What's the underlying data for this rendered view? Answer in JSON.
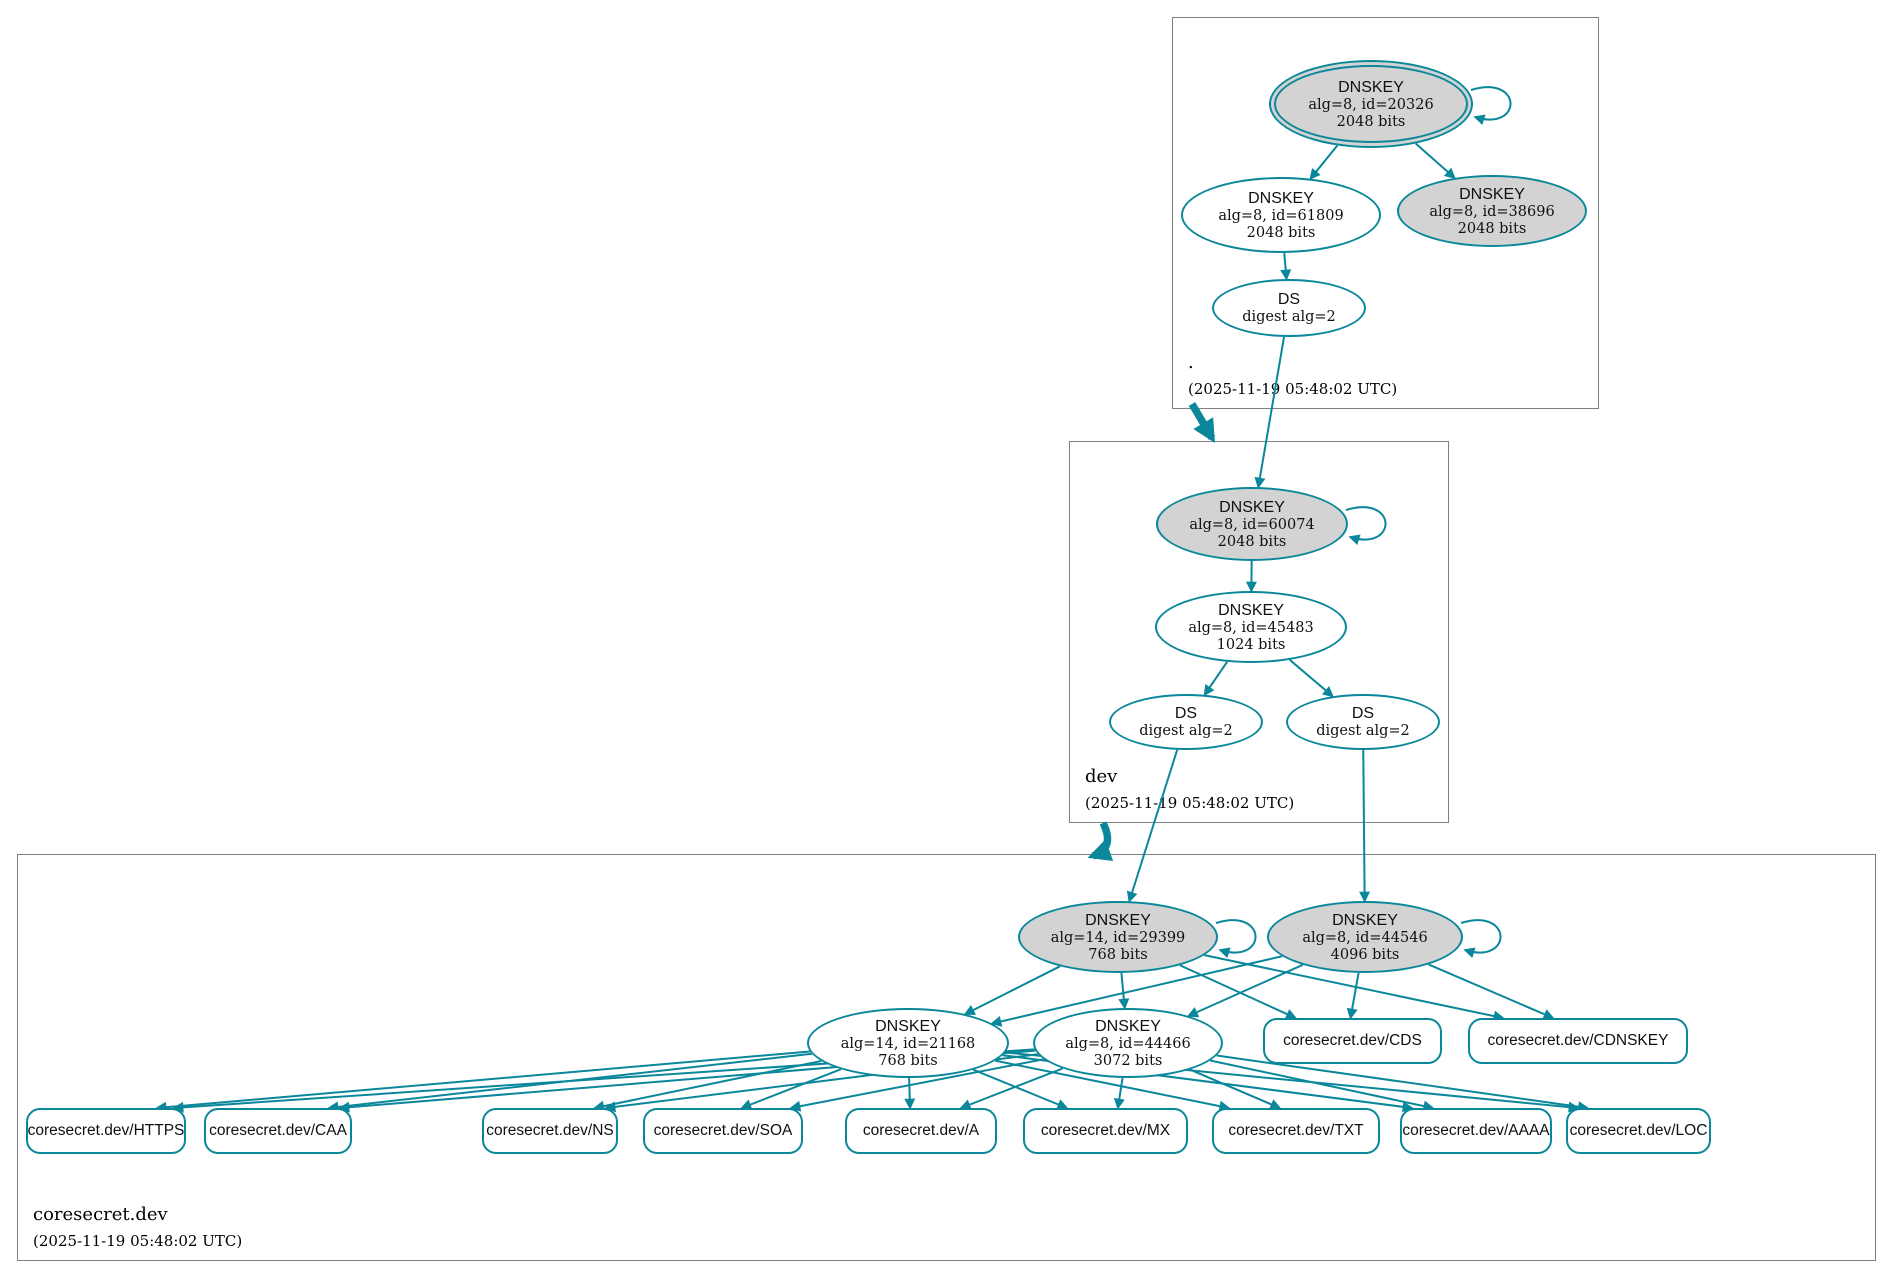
{
  "colors": {
    "secure_edge": "#0a879a",
    "ksk_fill": "#d3d3d3",
    "zone_border": "#808080"
  },
  "zones": {
    "root": {
      "label": ".",
      "timestamp": "(2025-11-19 05:48:02 UTC)",
      "nodes": {
        "ksk": {
          "title": "DNSKEY",
          "detail": "alg=8, id=20326",
          "bits": "2048 bits"
        },
        "zsk": {
          "title": "DNSKEY",
          "detail": "alg=8, id=61809",
          "bits": "2048 bits"
        },
        "ksk2": {
          "title": "DNSKEY",
          "detail": "alg=8, id=38696",
          "bits": "2048 bits"
        },
        "ds": {
          "title": "DS",
          "detail": "digest alg=2"
        }
      }
    },
    "dev": {
      "label": "dev",
      "timestamp": "(2025-11-19 05:48:02 UTC)",
      "nodes": {
        "ksk": {
          "title": "DNSKEY",
          "detail": "alg=8, id=60074",
          "bits": "2048 bits"
        },
        "zsk": {
          "title": "DNSKEY",
          "detail": "alg=8, id=45483",
          "bits": "1024 bits"
        },
        "ds1": {
          "title": "DS",
          "detail": "digest alg=2"
        },
        "ds2": {
          "title": "DS",
          "detail": "digest alg=2"
        }
      }
    },
    "coresecret": {
      "label": "coresecret.dev",
      "timestamp": "(2025-11-19 05:48:02 UTC)",
      "nodes": {
        "ksk1": {
          "title": "DNSKEY",
          "detail": "alg=14, id=29399",
          "bits": "768 bits"
        },
        "ksk2": {
          "title": "DNSKEY",
          "detail": "alg=8, id=44546",
          "bits": "4096 bits"
        },
        "zsk1": {
          "title": "DNSKEY",
          "detail": "alg=14, id=21168",
          "bits": "768 bits"
        },
        "zsk2": {
          "title": "DNSKEY",
          "detail": "alg=8, id=44466",
          "bits": "3072 bits"
        },
        "cds": {
          "label": "coresecret.dev/CDS"
        },
        "cdnskey": {
          "label": "coresecret.dev/CDNSKEY"
        }
      },
      "rrsets": [
        {
          "label": "coresecret.dev/HTTPS"
        },
        {
          "label": "coresecret.dev/CAA"
        },
        {
          "label": "coresecret.dev/NS"
        },
        {
          "label": "coresecret.dev/SOA"
        },
        {
          "label": "coresecret.dev/A"
        },
        {
          "label": "coresecret.dev/MX"
        },
        {
          "label": "coresecret.dev/TXT"
        },
        {
          "label": "coresecret.dev/AAAA"
        },
        {
          "label": "coresecret.dev/LOC"
        }
      ]
    }
  }
}
